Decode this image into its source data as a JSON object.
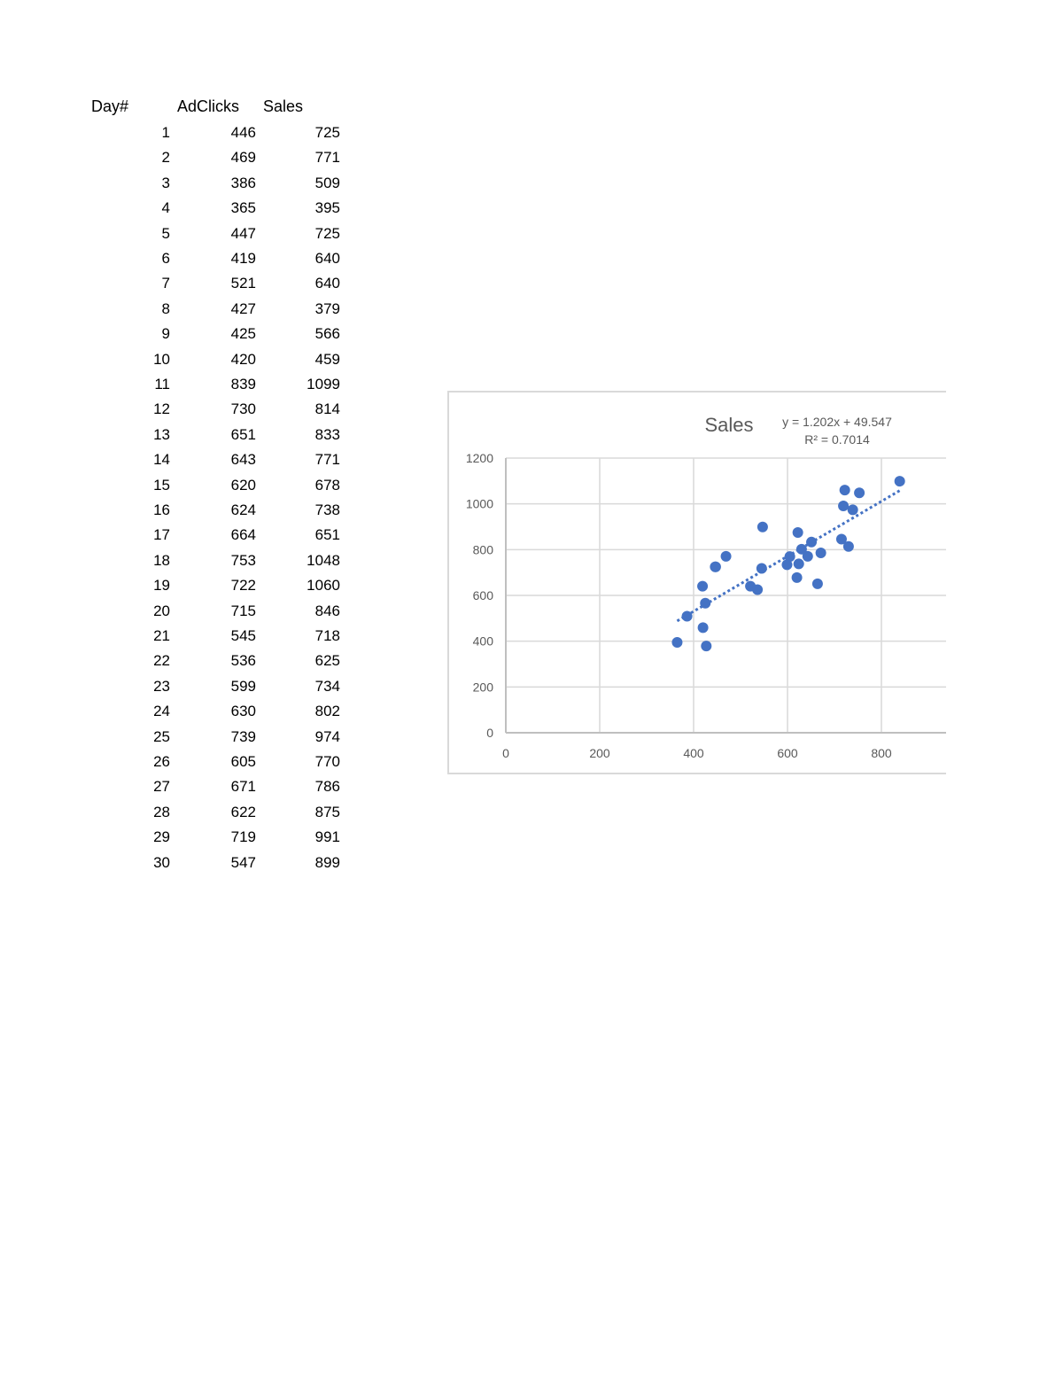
{
  "table": {
    "headers": [
      "Day#",
      "AdClicks",
      "Sales"
    ],
    "rows": [
      [
        1,
        446,
        725
      ],
      [
        2,
        469,
        771
      ],
      [
        3,
        386,
        509
      ],
      [
        4,
        365,
        395
      ],
      [
        5,
        447,
        725
      ],
      [
        6,
        419,
        640
      ],
      [
        7,
        521,
        640
      ],
      [
        8,
        427,
        379
      ],
      [
        9,
        425,
        566
      ],
      [
        10,
        420,
        459
      ],
      [
        11,
        839,
        1099
      ],
      [
        12,
        730,
        814
      ],
      [
        13,
        651,
        833
      ],
      [
        14,
        643,
        771
      ],
      [
        15,
        620,
        678
      ],
      [
        16,
        624,
        738
      ],
      [
        17,
        664,
        651
      ],
      [
        18,
        753,
        1048
      ],
      [
        19,
        722,
        1060
      ],
      [
        20,
        715,
        846
      ],
      [
        21,
        545,
        718
      ],
      [
        22,
        536,
        625
      ],
      [
        23,
        599,
        734
      ],
      [
        24,
        630,
        802
      ],
      [
        25,
        739,
        974
      ],
      [
        26,
        605,
        770
      ],
      [
        27,
        671,
        786
      ],
      [
        28,
        622,
        875
      ],
      [
        29,
        719,
        991
      ],
      [
        30,
        547,
        899
      ]
    ]
  },
  "chart_data": {
    "type": "scatter",
    "title": "Sales",
    "trendline": {
      "type": "linear",
      "slope": 1.202,
      "intercept": 49.547,
      "equation": "y = 1.202x + 49.547",
      "r_squared": "R² = 0.7014"
    },
    "xlim": [
      0,
      1000
    ],
    "ylim": [
      0,
      1200
    ],
    "xticks": [
      0,
      200,
      400,
      600,
      800
    ],
    "yticks": [
      0,
      200,
      400,
      600,
      800,
      1000,
      1200
    ],
    "grid": true,
    "point_color": "#4472C4",
    "grid_color": "#d9d9d9",
    "series": [
      {
        "x": [
          446,
          469,
          386,
          365,
          447,
          419,
          521,
          427,
          425,
          420,
          839,
          730,
          651,
          643,
          620,
          624,
          664,
          753,
          722,
          715,
          545,
          536,
          599,
          630,
          739,
          605,
          671,
          622,
          719,
          547
        ],
        "y": [
          725,
          771,
          509,
          395,
          725,
          640,
          640,
          379,
          566,
          459,
          1099,
          814,
          833,
          771,
          678,
          738,
          651,
          1048,
          1060,
          846,
          718,
          625,
          734,
          802,
          974,
          770,
          786,
          875,
          991,
          899
        ]
      }
    ]
  }
}
